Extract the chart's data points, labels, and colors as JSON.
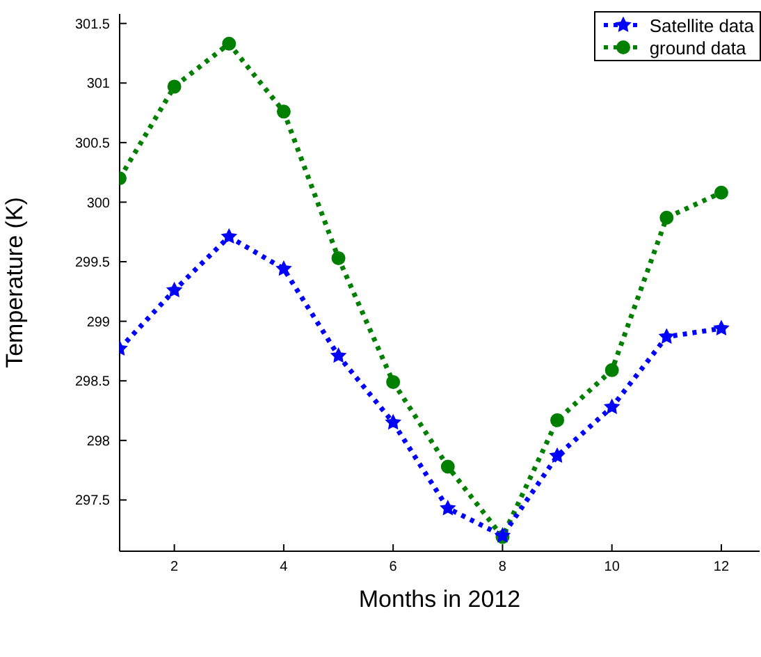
{
  "chart_data": {
    "type": "line",
    "xlabel": "Months in 2012",
    "ylabel": "Temperature (K)",
    "x": [
      1,
      2,
      3,
      4,
      5,
      6,
      7,
      8,
      9,
      10,
      11,
      12
    ],
    "series": [
      {
        "name": "Satellite data",
        "color": "#0000ff",
        "marker": "star",
        "values": [
          298.77,
          299.26,
          299.71,
          299.44,
          298.71,
          298.15,
          297.43,
          297.2,
          297.87,
          298.28,
          298.87,
          298.94
        ]
      },
      {
        "name": "ground data",
        "color": "#007f00",
        "marker": "circle",
        "values": [
          300.2,
          300.97,
          301.33,
          300.76,
          299.53,
          298.49,
          297.78,
          297.19,
          298.17,
          298.59,
          299.87,
          300.08
        ]
      }
    ],
    "xlim": [
      1,
      12.7
    ],
    "xticks": [
      2,
      4,
      6,
      8,
      10,
      12
    ],
    "ylim": [
      297.07,
      301.58
    ],
    "yticks": [
      297.5,
      298,
      298.5,
      299,
      299.5,
      300,
      300.5,
      301,
      301.5
    ],
    "grid": false,
    "legend": "top right",
    "line_style": "dotted"
  }
}
